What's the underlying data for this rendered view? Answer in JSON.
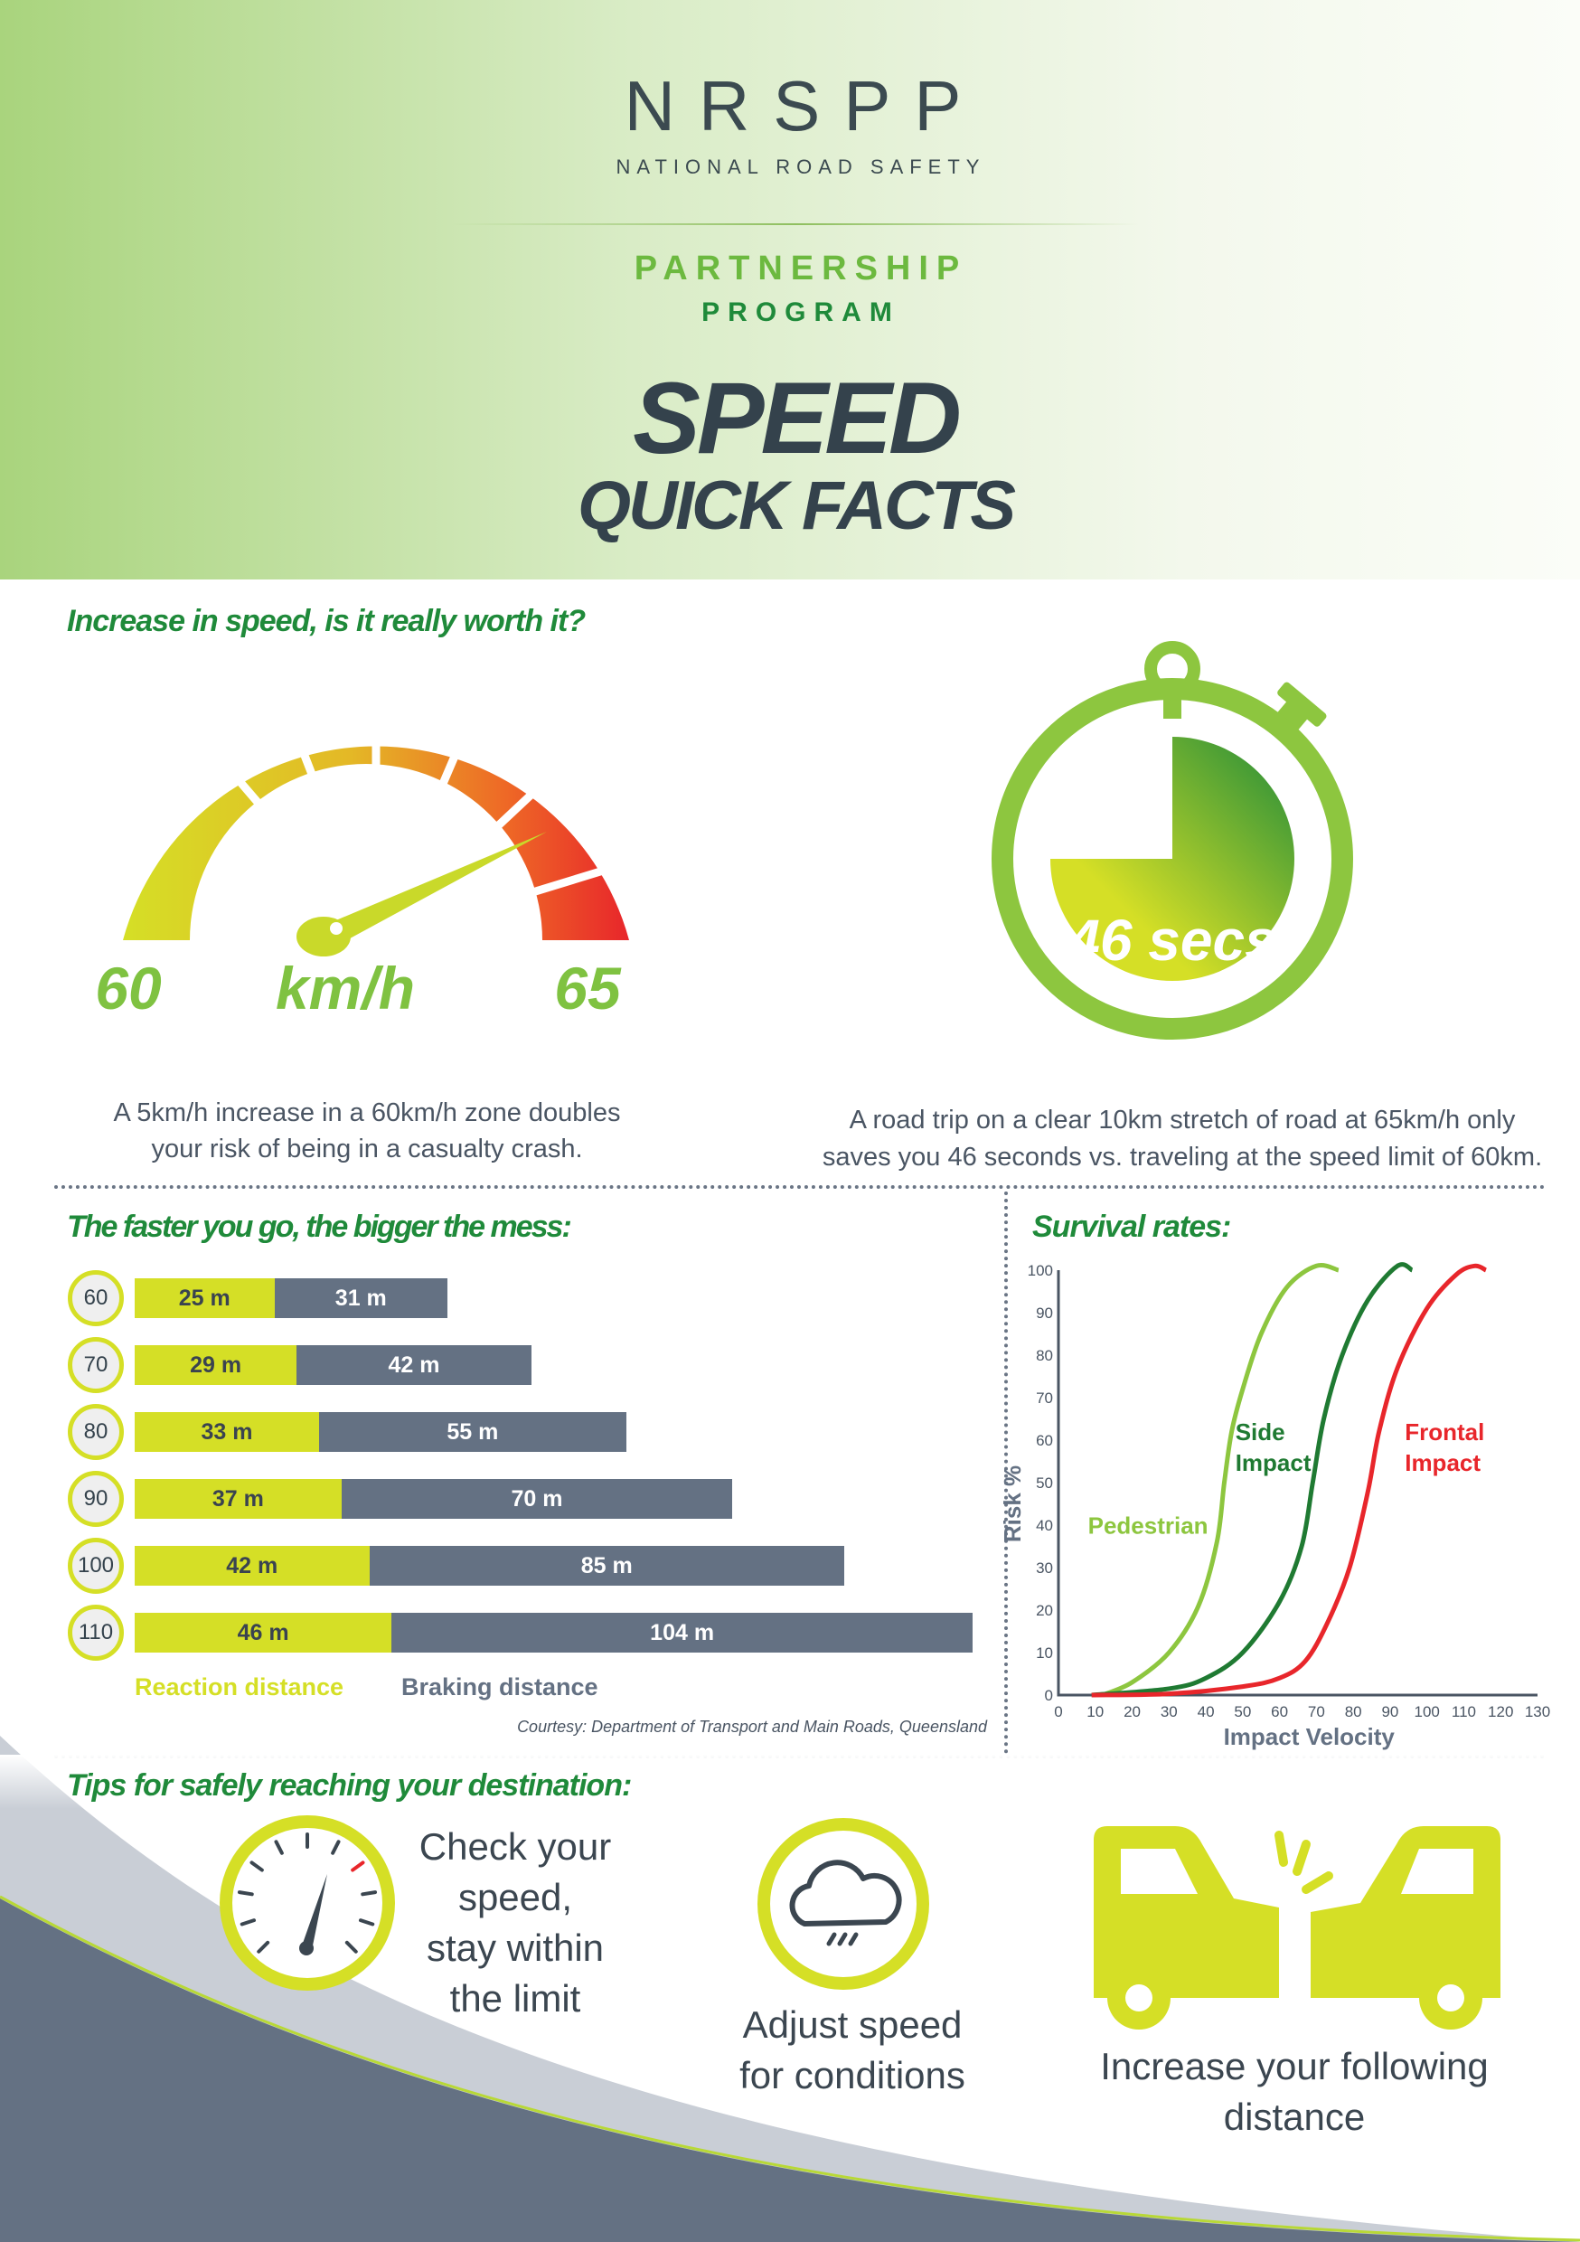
{
  "header": {
    "logo": "NRSPP",
    "logo_sub": "NATIONAL ROAD SAFETY",
    "logo_p": "PARTNERSHIP",
    "logo_pr": "PROGRAM",
    "title1": "SPEED",
    "title2": "QUICK FACTS"
  },
  "speed": {
    "heading": "Increase in speed, is it really worth it?",
    "from": "60",
    "unit": "km/h",
    "to": "65",
    "caption1": "A 5km/h increase in a 60km/h zone doubles",
    "caption2": "your risk of being in a casualty crash."
  },
  "timer": {
    "value": "46 secs",
    "caption1": "A road trip on a clear 10km stretch of road at 65km/h only",
    "caption2": "saves you 46 seconds vs. traveling at the speed limit of 60km."
  },
  "colors": {
    "green": "#1f8a3a",
    "lime": "#d5df26",
    "slate": "#647183",
    "red": "#e8262b",
    "light_green": "#8dc63f"
  },
  "chart_data": [
    {
      "type": "bar",
      "title": "The faster you go, the bigger the mess:",
      "categories": [
        "60",
        "70",
        "80",
        "90",
        "100",
        "110"
      ],
      "series": [
        {
          "name": "Reaction distance",
          "values": [
            25,
            29,
            33,
            37,
            42,
            46
          ],
          "labels": [
            "25 m",
            "29 m",
            "33 m",
            "37 m",
            "42 m",
            "46 m"
          ]
        },
        {
          "name": "Braking distance",
          "values": [
            31,
            42,
            55,
            70,
            85,
            104
          ],
          "labels": [
            "31 m",
            "42 m",
            "55 m",
            "70 m",
            "85 m",
            "104 m"
          ]
        }
      ],
      "stacked": true,
      "orientation": "horizontal",
      "legend": "bottom",
      "source": "Courtesy: Department of Transport and Main Roads, Queensland"
    },
    {
      "type": "line",
      "title": "Survival rates:",
      "xlabel": "Impact Velocity",
      "ylabel": "Risk %",
      "xlim": [
        0,
        130
      ],
      "ylim": [
        0,
        100
      ],
      "xticks": [
        "0",
        "10",
        "20",
        "30",
        "40",
        "50",
        "60",
        "70",
        "80",
        "90",
        "100",
        "110",
        "120",
        "130"
      ],
      "yticks": [
        "0",
        "10",
        "20",
        "30",
        "40",
        "50",
        "60",
        "70",
        "80",
        "90",
        "100"
      ],
      "series": [
        {
          "name": "Pedestrian",
          "color": "#8dc63f",
          "points": [
            [
              12,
              0
            ],
            [
              20,
              3
            ],
            [
              30,
              10
            ],
            [
              38,
              21
            ],
            [
              43,
              36
            ],
            [
              45,
              50
            ],
            [
              47,
              62
            ],
            [
              50,
              72
            ],
            [
              55,
              85
            ],
            [
              62,
              96
            ],
            [
              70,
              101
            ],
            [
              76,
              100
            ]
          ]
        },
        {
          "name": "Side Impact",
          "color": "#1f7a32",
          "points": [
            [
              9,
              0
            ],
            [
              30,
              1.5
            ],
            [
              40,
              4
            ],
            [
              50,
              10
            ],
            [
              60,
              22
            ],
            [
              66,
              35
            ],
            [
              69,
              50
            ],
            [
              72,
              65
            ],
            [
              77,
              80
            ],
            [
              84,
              93
            ],
            [
              92,
              101
            ],
            [
              96,
              100
            ]
          ]
        },
        {
          "name": "Frontal Impact",
          "color": "#e8262b",
          "points": [
            [
              9,
              0
            ],
            [
              30,
              0.3
            ],
            [
              50,
              2
            ],
            [
              60,
              4
            ],
            [
              67,
              8
            ],
            [
              73,
              17
            ],
            [
              79,
              30
            ],
            [
              84,
              48
            ],
            [
              87,
              62
            ],
            [
              92,
              77
            ],
            [
              100,
              91
            ],
            [
              108,
              99
            ],
            [
              113,
              101
            ],
            [
              116,
              100
            ]
          ]
        }
      ]
    }
  ],
  "tips": {
    "heading": "Tips for safely reaching your destination:",
    "items": [
      {
        "lines": [
          "Check your",
          "speed,",
          "stay within",
          "the limit"
        ]
      },
      {
        "lines": [
          "Adjust speed",
          "for conditions"
        ]
      },
      {
        "lines": [
          "Increase your following",
          "distance"
        ]
      }
    ]
  }
}
